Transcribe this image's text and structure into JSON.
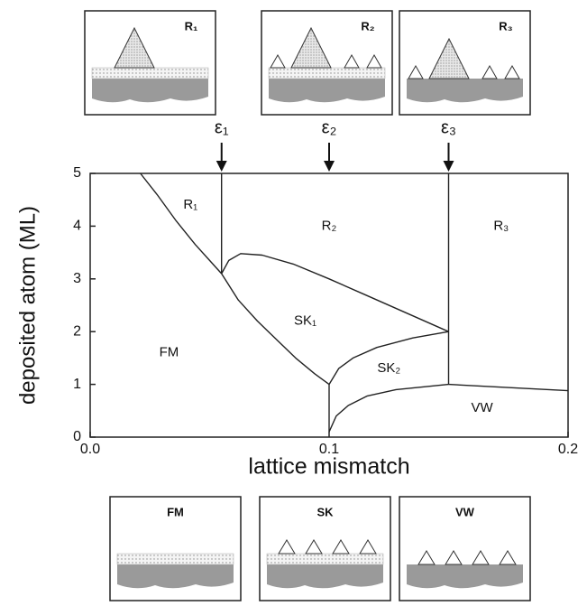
{
  "chart_data": {
    "type": "phase-diagram",
    "xlabel": "lattice mismatch",
    "ylabel": "deposited atom (ML)",
    "xlim": [
      0,
      0.2
    ],
    "ylim": [
      0,
      5
    ],
    "xticks": [
      {
        "value": 0,
        "label": "0.0"
      },
      0.1,
      0.2
    ],
    "yticks": [
      0,
      1,
      2,
      3,
      4,
      5
    ],
    "color": "#222222",
    "series": [
      {
        "x": [
          0.021,
          0.028,
          0.036,
          0.044,
          0.05,
          0.055
        ],
        "values": [
          5,
          4.6,
          4.1,
          3.65,
          3.35,
          3.1
        ]
      },
      {
        "x": [
          0.055,
          0.055
        ],
        "values": [
          3.1,
          5
        ]
      },
      {
        "x": [
          0.055,
          0.062,
          0.07,
          0.078,
          0.086,
          0.094,
          0.1
        ],
        "values": [
          3.1,
          2.6,
          2.2,
          1.85,
          1.5,
          1.2,
          1.0
        ]
      },
      {
        "x": [
          0.055,
          0.058,
          0.063,
          0.072,
          0.085,
          0.1,
          0.115,
          0.13,
          0.15
        ],
        "values": [
          3.1,
          3.35,
          3.48,
          3.45,
          3.28,
          3.0,
          2.7,
          2.4,
          2.0
        ]
      },
      {
        "x": [
          0.1,
          0.104,
          0.11,
          0.12,
          0.135,
          0.15
        ],
        "values": [
          1.0,
          1.3,
          1.5,
          1.7,
          1.88,
          2.0
        ]
      },
      {
        "x": [
          0.1,
          0.1
        ],
        "values": [
          0.1,
          1.0
        ]
      },
      {
        "x": [
          0.1,
          0.103,
          0.108,
          0.116,
          0.128,
          0.15
        ],
        "values": [
          0.1,
          0.4,
          0.6,
          0.78,
          0.9,
          1.0
        ]
      },
      {
        "x": [
          0.15,
          0.15
        ],
        "values": [
          1.0,
          5
        ]
      },
      {
        "x": [
          0.15,
          0.2
        ],
        "values": [
          1.0,
          0.88
        ]
      }
    ],
    "markers": [
      {
        "x": 0.055,
        "label": "ε₁"
      },
      {
        "x": 0.1,
        "label": "ε₂"
      },
      {
        "x": 0.15,
        "label": "ε₃"
      }
    ],
    "annotations": [
      {
        "text": "R₁",
        "x": 0.042,
        "y": 4.4
      },
      {
        "text": "R₂",
        "x": 0.1,
        "y": 4.0
      },
      {
        "text": "R₃",
        "x": 0.172,
        "y": 4.0
      },
      {
        "text": "SK₁",
        "x": 0.09,
        "y": 2.2
      },
      {
        "text": "FM",
        "x": 0.033,
        "y": 1.6
      },
      {
        "text": "SK₂",
        "x": 0.125,
        "y": 1.3
      },
      {
        "text": "VW",
        "x": 0.164,
        "y": 0.55
      }
    ]
  },
  "insets": {
    "top": [
      "R₁",
      "R₂",
      "R₃"
    ],
    "bottom": [
      "FM",
      "SK",
      "VW"
    ]
  }
}
